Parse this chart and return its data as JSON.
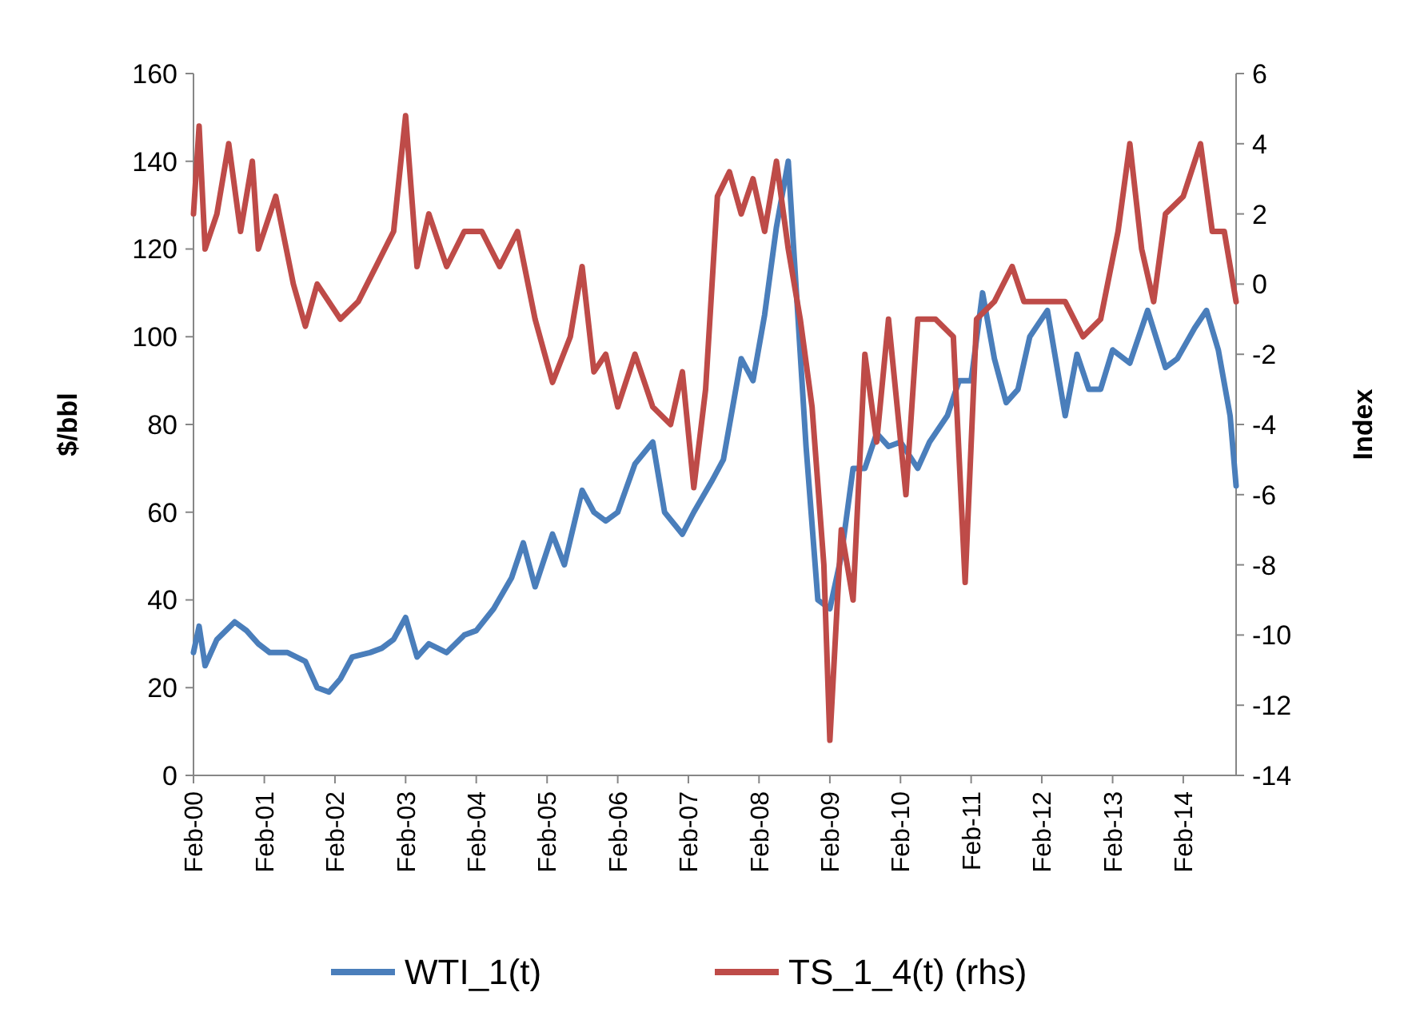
{
  "chart_data": {
    "type": "line",
    "ylabel": "$/bbl",
    "y2label": "Index",
    "legend": "bottom",
    "grid": false,
    "line_style": "solid",
    "xlim": [
      "2000-02",
      "2014-11"
    ],
    "xticks": [
      {
        "value": "2000-02",
        "label": "Feb-00"
      },
      {
        "value": "2001-02",
        "label": "Feb-01"
      },
      {
        "value": "2002-02",
        "label": "Feb-02"
      },
      {
        "value": "2003-02",
        "label": "Feb-03"
      },
      {
        "value": "2004-02",
        "label": "Feb-04"
      },
      {
        "value": "2005-02",
        "label": "Feb-05"
      },
      {
        "value": "2006-02",
        "label": "Feb-06"
      },
      {
        "value": "2007-02",
        "label": "Feb-07"
      },
      {
        "value": "2008-02",
        "label": "Feb-08"
      },
      {
        "value": "2009-02",
        "label": "Feb-09"
      },
      {
        "value": "2010-02",
        "label": "Feb-10"
      },
      {
        "value": "2011-02",
        "label": "Feb-11"
      },
      {
        "value": "2012-02",
        "label": "Feb-12"
      },
      {
        "value": "2013-02",
        "label": "Feb-13"
      },
      {
        "value": "2014-02",
        "label": "Feb-14"
      }
    ],
    "ylim": [
      0,
      160
    ],
    "yticks": [
      0,
      20,
      40,
      60,
      80,
      100,
      120,
      140,
      160
    ],
    "y2lim": [
      -14,
      6
    ],
    "y2ticks": [
      -14,
      -12,
      -10,
      -8,
      -6,
      -4,
      -2,
      0,
      2,
      4,
      6
    ],
    "series": [
      {
        "name": "WTI_1(t)",
        "color": "#4a7ebb",
        "x": [
          "2000-02",
          "2000-03",
          "2000-04",
          "2000-06",
          "2000-09",
          "2000-11",
          "2001-01",
          "2001-03",
          "2001-06",
          "2001-09",
          "2001-11",
          "2002-01",
          "2002-03",
          "2002-05",
          "2002-08",
          "2002-10",
          "2002-12",
          "2003-02",
          "2003-04",
          "2003-06",
          "2003-09",
          "2003-12",
          "2004-02",
          "2004-05",
          "2004-08",
          "2004-10",
          "2004-12",
          "2005-03",
          "2005-05",
          "2005-08",
          "2005-10",
          "2005-12",
          "2006-02",
          "2006-05",
          "2006-08",
          "2006-10",
          "2007-01",
          "2007-03",
          "2007-06",
          "2007-08",
          "2007-11",
          "2008-01",
          "2008-03",
          "2008-05",
          "2008-07",
          "2008-08",
          "2008-10",
          "2008-12",
          "2009-02",
          "2009-04",
          "2009-06",
          "2009-08",
          "2009-10",
          "2009-12",
          "2010-02",
          "2010-05",
          "2010-07",
          "2010-10",
          "2010-12",
          "2011-02",
          "2011-04",
          "2011-06",
          "2011-08",
          "2011-10",
          "2011-12",
          "2012-03",
          "2012-06",
          "2012-08",
          "2012-10",
          "2012-12",
          "2013-02",
          "2013-05",
          "2013-08",
          "2013-11",
          "2014-01",
          "2014-04",
          "2014-06",
          "2014-08",
          "2014-10",
          "2014-11"
        ],
        "values": [
          28,
          34,
          25,
          31,
          35,
          33,
          30,
          28,
          28,
          26,
          20,
          19,
          22,
          27,
          28,
          29,
          31,
          36,
          27,
          30,
          28,
          32,
          33,
          38,
          45,
          53,
          43,
          55,
          48,
          65,
          60,
          58,
          60,
          71,
          76,
          60,
          55,
          60,
          67,
          72,
          95,
          90,
          105,
          125,
          140,
          118,
          75,
          40,
          38,
          50,
          70,
          70,
          78,
          75,
          76,
          70,
          76,
          82,
          90,
          90,
          110,
          95,
          85,
          88,
          100,
          106,
          82,
          96,
          88,
          88,
          97,
          94,
          106,
          93,
          95,
          102,
          106,
          97,
          82,
          66
        ]
      },
      {
        "name": "TS_1_4(t) (rhs)",
        "color": "#be4b48",
        "axis": "y2",
        "x": [
          "2000-02",
          "2000-03",
          "2000-04",
          "2000-06",
          "2000-08",
          "2000-10",
          "2000-12",
          "2001-01",
          "2001-04",
          "2001-07",
          "2001-09",
          "2001-11",
          "2002-03",
          "2002-06",
          "2002-09",
          "2002-12",
          "2003-02",
          "2003-04",
          "2003-06",
          "2003-09",
          "2003-12",
          "2004-03",
          "2004-06",
          "2004-09",
          "2004-12",
          "2005-03",
          "2005-06",
          "2005-08",
          "2005-10",
          "2005-12",
          "2006-02",
          "2006-05",
          "2006-08",
          "2006-11",
          "2007-01",
          "2007-03",
          "2007-05",
          "2007-07",
          "2007-09",
          "2007-11",
          "2008-01",
          "2008-03",
          "2008-05",
          "2008-07",
          "2008-09",
          "2008-11",
          "2009-01",
          "2009-02",
          "2009-04",
          "2009-06",
          "2009-08",
          "2009-10",
          "2009-12",
          "2010-03",
          "2010-05",
          "2010-08",
          "2010-11",
          "2011-01",
          "2011-03",
          "2011-06",
          "2011-09",
          "2011-11",
          "2012-02",
          "2012-06",
          "2012-09",
          "2012-12",
          "2013-03",
          "2013-05",
          "2013-07",
          "2013-09",
          "2013-11",
          "2014-02",
          "2014-05",
          "2014-07",
          "2014-09",
          "2014-11"
        ],
        "values": [
          2,
          4.5,
          1,
          2,
          4,
          1.5,
          3.5,
          1,
          2.5,
          0,
          -1.2,
          0,
          -1,
          -0.5,
          0.5,
          1.5,
          4.8,
          0.5,
          2,
          0.5,
          1.5,
          1.5,
          0.5,
          1.5,
          -1,
          -2.8,
          -1.5,
          0.5,
          -2.5,
          -2,
          -3.5,
          -2,
          -3.5,
          -4,
          -2.5,
          -5.8,
          -3,
          2.5,
          3.2,
          2,
          3,
          1.5,
          3.5,
          1,
          -1,
          -3.5,
          -8,
          -13,
          -7,
          -9,
          -2,
          -4.5,
          -1,
          -6,
          -1,
          -1,
          -1.5,
          -8.5,
          -1,
          -0.5,
          0.5,
          -0.5,
          -0.5,
          -0.5,
          -1.5,
          -1,
          1.5,
          4,
          1,
          -0.5,
          2,
          2.5,
          4,
          1.5,
          1.5,
          -0.5
        ]
      }
    ]
  }
}
